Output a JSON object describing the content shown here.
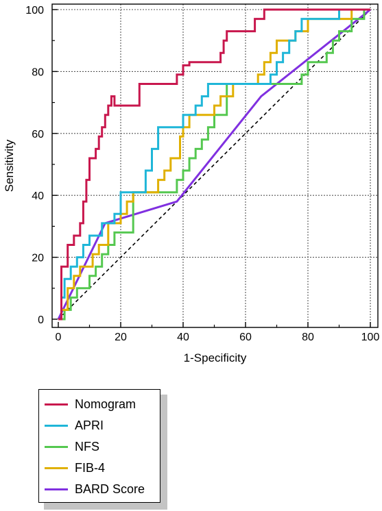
{
  "chart_data": {
    "type": "line",
    "title": "",
    "xlabel": "1-Specificity",
    "ylabel": "Sensitivity",
    "xlim": [
      0,
      100
    ],
    "ylim": [
      0,
      100
    ],
    "xticks": [
      0,
      20,
      40,
      60,
      80,
      100
    ],
    "yticks": [
      0,
      20,
      40,
      60,
      80,
      100
    ],
    "grid": true,
    "diagonal_reference": true,
    "legend_position": "below",
    "series": [
      {
        "name": "Nomogram",
        "color": "#c8174d",
        "step": true,
        "x": [
          0,
          1,
          3,
          5,
          7,
          8,
          9,
          10,
          12,
          13,
          14,
          15,
          16,
          17,
          18,
          26,
          28,
          38,
          40,
          42,
          52,
          53,
          54,
          62,
          63,
          64,
          65,
          66,
          67,
          91,
          100
        ],
        "y": [
          0,
          17,
          24,
          27,
          31,
          38,
          45,
          52,
          55,
          59,
          62,
          66,
          69,
          72,
          69,
          76,
          76,
          79,
          82,
          83,
          86,
          90,
          93,
          93,
          97,
          97,
          97,
          100,
          100,
          100,
          100
        ]
      },
      {
        "name": "APRI",
        "color": "#1fb6d8",
        "step": true,
        "x": [
          0,
          1,
          2,
          4,
          6,
          8,
          10,
          14,
          18,
          20,
          26,
          28,
          30,
          32,
          40,
          44,
          46,
          48,
          50,
          66,
          68,
          70,
          72,
          74,
          76,
          78,
          80,
          90,
          100
        ],
        "y": [
          0,
          7,
          13,
          17,
          20,
          24,
          27,
          31,
          34,
          41,
          41,
          48,
          55,
          62,
          66,
          69,
          72,
          76,
          76,
          76,
          79,
          83,
          86,
          90,
          93,
          97,
          97,
          100,
          100
        ]
      },
      {
        "name": "NFS",
        "color": "#55c850",
        "step": true,
        "x": [
          0,
          2,
          4,
          6,
          10,
          12,
          14,
          16,
          18,
          24,
          34,
          38,
          40,
          42,
          44,
          46,
          48,
          50,
          54,
          76,
          78,
          80,
          84,
          86,
          88,
          90,
          92,
          94,
          96,
          98,
          100
        ],
        "y": [
          0,
          3,
          7,
          10,
          14,
          17,
          21,
          24,
          28,
          41,
          41,
          45,
          48,
          52,
          55,
          58,
          62,
          66,
          76,
          76,
          79,
          83,
          83,
          86,
          90,
          93,
          93,
          97,
          97,
          100,
          100
        ]
      },
      {
        "name": "FIB-4",
        "color": "#e0b000",
        "step": true,
        "x": [
          0,
          1,
          3,
          5,
          7,
          11,
          13,
          16,
          18,
          20,
          22,
          24,
          26,
          32,
          34,
          36,
          39,
          40,
          42,
          46,
          50,
          52,
          54,
          56,
          62,
          64,
          66,
          68,
          70,
          74,
          76,
          78,
          80,
          82,
          94,
          96,
          100
        ],
        "y": [
          0,
          3,
          10,
          14,
          17,
          21,
          24,
          31,
          31,
          34,
          38,
          41,
          41,
          45,
          48,
          52,
          59,
          62,
          66,
          66,
          69,
          72,
          72,
          76,
          76,
          79,
          83,
          86,
          90,
          90,
          93,
          93,
          97,
          97,
          100,
          100,
          100
        ]
      },
      {
        "name": "BARD Score",
        "color": "#8030e0",
        "step": false,
        "x": [
          0,
          15,
          38,
          65,
          100
        ],
        "y": [
          0,
          31,
          38,
          72,
          100
        ]
      }
    ]
  }
}
